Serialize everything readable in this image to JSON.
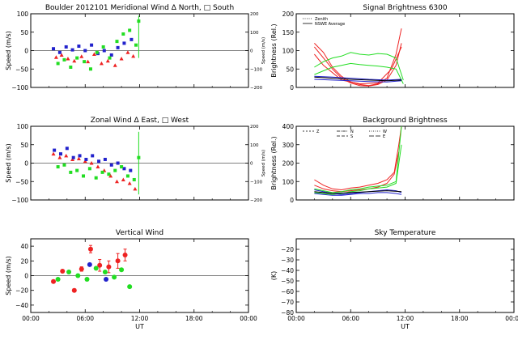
{
  "chart_data": [
    {
      "id": "meridional",
      "type": "scatter",
      "title": "Boulder   2012101     Meridional Wind   Δ North, □ South",
      "xlabel": "",
      "ylabel": "Speed (m/s)",
      "right_ylabel": "Speed (m/s)",
      "xlim": [
        0,
        24
      ],
      "ylim": [
        -100,
        100
      ],
      "right_ylim": [
        -200,
        200
      ],
      "xticks": [
        0,
        6,
        12,
        18,
        24
      ],
      "xtick_labels": [
        "",
        "",
        "",
        "",
        ""
      ],
      "yticks": [
        -100,
        -50,
        0,
        50,
        100
      ],
      "ytick_labels": [
        "−100",
        "−50",
        "0",
        "50",
        "100"
      ],
      "right_yticks": [
        -200,
        -100,
        0,
        100,
        200
      ],
      "right_ytick_labels": [
        "−200",
        "−100",
        "0",
        "100",
        "200"
      ],
      "vline": {
        "x": 11.9,
        "y0": -20,
        "y1": 95,
        "color": "#22dd22"
      },
      "series": [
        {
          "color": "#ee2222",
          "marker": "tri",
          "x": [
            2.8,
            3.4,
            4.1,
            4.8,
            5.6,
            6.3,
            7.0,
            7.8,
            8.5,
            9.3,
            10.0,
            10.7,
            11.3
          ],
          "y": [
            -18,
            -12,
            -22,
            -28,
            -16,
            -30,
            -10,
            -35,
            -28,
            -40,
            -22,
            -5,
            -15
          ]
        },
        {
          "color": "#2222cc",
          "marker": "sq",
          "x": [
            2.5,
            3.2,
            3.9,
            4.6,
            5.3,
            6.0,
            6.7,
            7.4,
            8.1,
            8.9,
            9.6,
            10.3,
            11.1
          ],
          "y": [
            5,
            -5,
            10,
            2,
            12,
            0,
            15,
            -8,
            0,
            -12,
            8,
            20,
            30
          ]
        },
        {
          "color": "#22dd22",
          "marker": "sq",
          "x": [
            3.0,
            3.7,
            4.4,
            5.1,
            5.9,
            6.6,
            7.3,
            8.0,
            8.7,
            9.5,
            10.2,
            10.9,
            11.6,
            11.9
          ],
          "y": [
            -35,
            -25,
            -45,
            -20,
            -30,
            -50,
            -5,
            10,
            -20,
            25,
            45,
            55,
            15,
            80
          ]
        }
      ]
    },
    {
      "id": "signal",
      "type": "line",
      "title": "Signal Brightness       6300",
      "xlabel": "",
      "ylabel": "Brightness (Rel.)",
      "xlim": [
        0,
        24
      ],
      "ylim": [
        0,
        200
      ],
      "xticks": [
        0,
        6,
        12,
        18,
        24
      ],
      "xtick_labels": [
        "",
        "",
        "",
        "",
        ""
      ],
      "yticks": [
        0,
        50,
        100,
        150,
        200
      ],
      "ytick_labels": [
        "0",
        "50",
        "100",
        "150",
        "200"
      ],
      "legend": [
        "Zenith",
        "NSWE Average"
      ],
      "series": [
        {
          "color": "#ee2222",
          "x": [
            2,
            3,
            4,
            5,
            6,
            7,
            8,
            9,
            10,
            11,
            11.6
          ],
          "y": [
            120,
            95,
            55,
            30,
            15,
            8,
            5,
            10,
            25,
            90,
            160
          ]
        },
        {
          "color": "#ee2222",
          "x": [
            2,
            3,
            4,
            5,
            6,
            7,
            8,
            9,
            10,
            11,
            11.6
          ],
          "y": [
            110,
            80,
            50,
            25,
            12,
            5,
            4,
            8,
            20,
            60,
            120
          ]
        },
        {
          "color": "#ee2222",
          "x": [
            2,
            3,
            5,
            7,
            9,
            10.5,
            11.6
          ],
          "y": [
            90,
            60,
            20,
            10,
            12,
            50,
            110
          ]
        },
        {
          "color": "#22dd22",
          "x": [
            2,
            3,
            4,
            5,
            6,
            7,
            8,
            9,
            10,
            11,
            11.8
          ],
          "y": [
            55,
            70,
            80,
            85,
            95,
            90,
            88,
            92,
            90,
            80,
            20
          ]
        },
        {
          "color": "#22dd22",
          "x": [
            2,
            3,
            4,
            5,
            6,
            7,
            8,
            9,
            10,
            11,
            11.8
          ],
          "y": [
            35,
            45,
            55,
            60,
            65,
            62,
            60,
            58,
            55,
            50,
            10
          ]
        },
        {
          "color": "#2222cc",
          "x": [
            2,
            4,
            6,
            8,
            10,
            11.6
          ],
          "y": [
            30,
            28,
            25,
            22,
            20,
            22
          ]
        },
        {
          "color": "#2222cc",
          "x": [
            2,
            4,
            6,
            8,
            10,
            11.6
          ],
          "y": [
            22,
            20,
            18,
            16,
            15,
            18
          ]
        },
        {
          "color": "#000000",
          "x": [
            2,
            4,
            6,
            8,
            10,
            11.6
          ],
          "y": [
            28,
            25,
            22,
            20,
            18,
            20
          ]
        }
      ]
    },
    {
      "id": "zonal",
      "type": "scatter",
      "title": "Zonal Wind       Δ East, □ West",
      "xlabel": "",
      "ylabel": "Speed (m/s)",
      "right_ylabel": "Speed (m/s)",
      "xlim": [
        0,
        24
      ],
      "ylim": [
        -100,
        100
      ],
      "right_ylim": [
        -200,
        200
      ],
      "xticks": [
        0,
        6,
        12,
        18,
        24
      ],
      "xtick_labels": [
        "",
        "",
        "",
        "",
        ""
      ],
      "yticks": [
        -100,
        -50,
        0,
        50,
        100
      ],
      "ytick_labels": [
        "−100",
        "−50",
        "0",
        "50",
        "100"
      ],
      "right_yticks": [
        -200,
        -100,
        0,
        100,
        200
      ],
      "right_ytick_labels": [
        "−200",
        "−100",
        "0",
        "100",
        "200"
      ],
      "vline": {
        "x": 11.9,
        "y0": -85,
        "y1": 85,
        "color": "#22dd22"
      },
      "series": [
        {
          "color": "#ee2222",
          "marker": "tri",
          "x": [
            2.5,
            3.2,
            3.9,
            4.6,
            5.3,
            6.0,
            6.7,
            7.4,
            8.1,
            8.8,
            9.5,
            10.2,
            10.9,
            11.5
          ],
          "y": [
            25,
            15,
            20,
            10,
            12,
            5,
            0,
            -10,
            -20,
            -35,
            -50,
            -45,
            -55,
            -70
          ]
        },
        {
          "color": "#2222cc",
          "marker": "sq",
          "x": [
            2.6,
            3.3,
            4.0,
            4.7,
            5.4,
            6.1,
            6.8,
            7.5,
            8.2,
            8.9,
            9.6,
            10.3,
            11.0
          ],
          "y": [
            35,
            25,
            40,
            15,
            20,
            10,
            20,
            5,
            10,
            -5,
            0,
            -15,
            -20
          ]
        },
        {
          "color": "#22dd22",
          "marker": "sq",
          "x": [
            3.0,
            3.7,
            4.4,
            5.1,
            5.8,
            6.5,
            7.2,
            7.9,
            8.6,
            9.3,
            10.0,
            10.7,
            11.4,
            11.9
          ],
          "y": [
            -10,
            -5,
            -25,
            -20,
            -35,
            -15,
            -40,
            -25,
            -30,
            -20,
            -10,
            -35,
            -45,
            15
          ]
        }
      ]
    },
    {
      "id": "background",
      "type": "line",
      "title": "Background Brightness",
      "xlabel": "",
      "ylabel": "Brightness (Rel.)",
      "xlim": [
        0,
        24
      ],
      "ylim": [
        0,
        400
      ],
      "xticks": [
        0,
        6,
        12,
        18,
        24
      ],
      "xtick_labels": [
        "",
        "",
        "",
        "",
        ""
      ],
      "yticks": [
        0,
        100,
        200,
        300,
        400
      ],
      "ytick_labels": [
        "0",
        "100",
        "200",
        "300",
        "400"
      ],
      "legend": [
        "Z",
        "N",
        "S",
        "W",
        "E"
      ],
      "series": [
        {
          "color": "#ee2222",
          "x": [
            2,
            3,
            4,
            5,
            6,
            7,
            8,
            9,
            10,
            10.8,
            11.3,
            11.6
          ],
          "y": [
            110,
            80,
            60,
            55,
            65,
            70,
            80,
            90,
            110,
            150,
            300,
            400
          ]
        },
        {
          "color": "#ee2222",
          "x": [
            2,
            3,
            4,
            5,
            6,
            7,
            8,
            9,
            10,
            10.8,
            11.3
          ],
          "y": [
            80,
            60,
            50,
            45,
            50,
            55,
            60,
            70,
            90,
            140,
            260
          ]
        },
        {
          "color": "#22dd22",
          "x": [
            2,
            3,
            4,
            5,
            6,
            7,
            8,
            9,
            10,
            11,
            11.6
          ],
          "y": [
            60,
            50,
            40,
            45,
            55,
            60,
            70,
            75,
            80,
            100,
            400
          ]
        },
        {
          "color": "#22dd22",
          "x": [
            2,
            3,
            4,
            5,
            6,
            7,
            8,
            9,
            10,
            11,
            11.6
          ],
          "y": [
            40,
            35,
            30,
            35,
            45,
            50,
            60,
            65,
            70,
            90,
            300
          ]
        },
        {
          "color": "#2222cc",
          "x": [
            2,
            3,
            4,
            5,
            6,
            7,
            8,
            9,
            10,
            11,
            11.6
          ],
          "y": [
            55,
            45,
            35,
            30,
            35,
            40,
            45,
            50,
            55,
            50,
            40
          ]
        },
        {
          "color": "#2222cc",
          "x": [
            2,
            3,
            4,
            5,
            6,
            7,
            8,
            9,
            10,
            11,
            11.6
          ],
          "y": [
            35,
            30,
            25,
            25,
            30,
            35,
            35,
            40,
            40,
            35,
            30
          ]
        },
        {
          "color": "#000000",
          "x": [
            2,
            4,
            6,
            8,
            10,
            11.6
          ],
          "y": [
            45,
            35,
            40,
            45,
            50,
            45
          ]
        }
      ]
    },
    {
      "id": "vertical",
      "type": "scatter",
      "title": "Vertical Wind",
      "xlabel": "UT",
      "ylabel": "Speed (m/s)",
      "xlim": [
        0,
        24
      ],
      "ylim": [
        -50,
        50
      ],
      "xticks": [
        0,
        6,
        12,
        18,
        24
      ],
      "xtick_labels": [
        "00:00",
        "06:00",
        "12:00",
        "18:00",
        "00:00"
      ],
      "yticks": [
        -40,
        -20,
        0,
        20,
        40
      ],
      "ytick_labels": [
        "−40",
        "−20",
        "0",
        "20",
        "40"
      ],
      "series": [
        {
          "color": "#ee2222",
          "marker": "dot",
          "x": [
            2.5,
            3.5,
            4.8,
            5.6,
            6.6,
            7.6,
            8.6,
            9.6,
            10.4
          ],
          "y": [
            -8,
            6,
            -20,
            9,
            36,
            14,
            12,
            20,
            28
          ],
          "err": [
            2,
            2,
            2,
            3,
            5,
            8,
            8,
            10,
            8
          ]
        },
        {
          "color": "#22dd22",
          "marker": "dot",
          "x": [
            3.0,
            4.2,
            5.2,
            6.2,
            7.2,
            8.2,
            9.2,
            10.0,
            10.9
          ],
          "y": [
            -5,
            5,
            0,
            -5,
            10,
            5,
            -2,
            8,
            -15
          ],
          "err": [
            0,
            0,
            0,
            0,
            0,
            0,
            0,
            0,
            0
          ]
        },
        {
          "color": "#2222cc",
          "marker": "dot",
          "x": [
            6.5,
            8.3
          ],
          "y": [
            15,
            -5
          ],
          "err": [
            0,
            0
          ]
        }
      ]
    },
    {
      "id": "skytemp",
      "type": "line",
      "title": "Sky Temperature",
      "xlabel": "UT",
      "ylabel": "(K)",
      "xlim": [
        0,
        24
      ],
      "ylim": [
        -80,
        -10
      ],
      "xticks": [
        0,
        6,
        12,
        18,
        24
      ],
      "xtick_labels": [
        "00:00",
        "06:00",
        "12:00",
        "18:00",
        "00:00"
      ],
      "yticks": [
        -80,
        -70,
        -60,
        -50,
        -40,
        -30,
        -20
      ],
      "ytick_labels": [
        "−80",
        "−70",
        "−60",
        "−50",
        "−40",
        "−30",
        "−20"
      ],
      "series": []
    }
  ]
}
